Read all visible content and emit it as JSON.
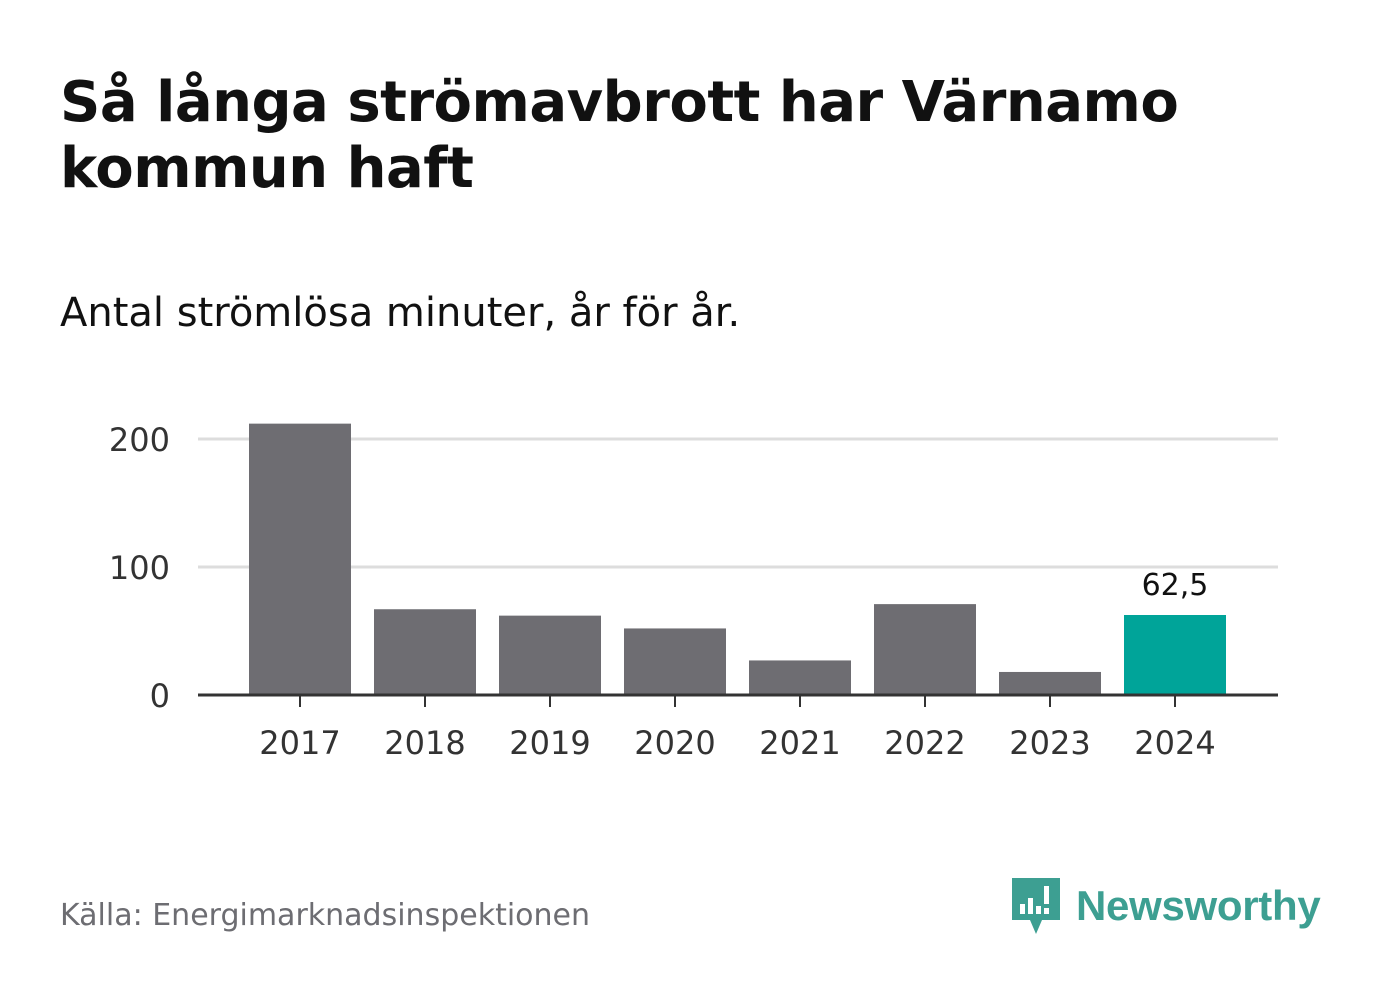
{
  "title": "Så långa strömavbrott har Värnamo kommun haft",
  "subtitle": "Antal strömlösa minuter, år för år.",
  "source": "Källa: Energimarknadsinspektionen",
  "brand": {
    "name": "Newsworthy",
    "icon": "newsworthy-logo-icon",
    "color": "#3d9f92"
  },
  "chart_data": {
    "type": "bar",
    "categories": [
      "2017",
      "2018",
      "2019",
      "2020",
      "2021",
      "2022",
      "2023",
      "2024"
    ],
    "values": [
      212,
      67,
      62,
      52,
      27,
      71,
      18,
      62.5
    ],
    "highlight_index": 7,
    "highlight_label": "62,5",
    "ylim": [
      0,
      220
    ],
    "yticks": [
      0,
      100,
      200
    ],
    "grid": true,
    "colors": {
      "bar": "#6e6d72",
      "highlight": "#00a499",
      "grid": "#dddddd",
      "axis": "#333333"
    }
  }
}
